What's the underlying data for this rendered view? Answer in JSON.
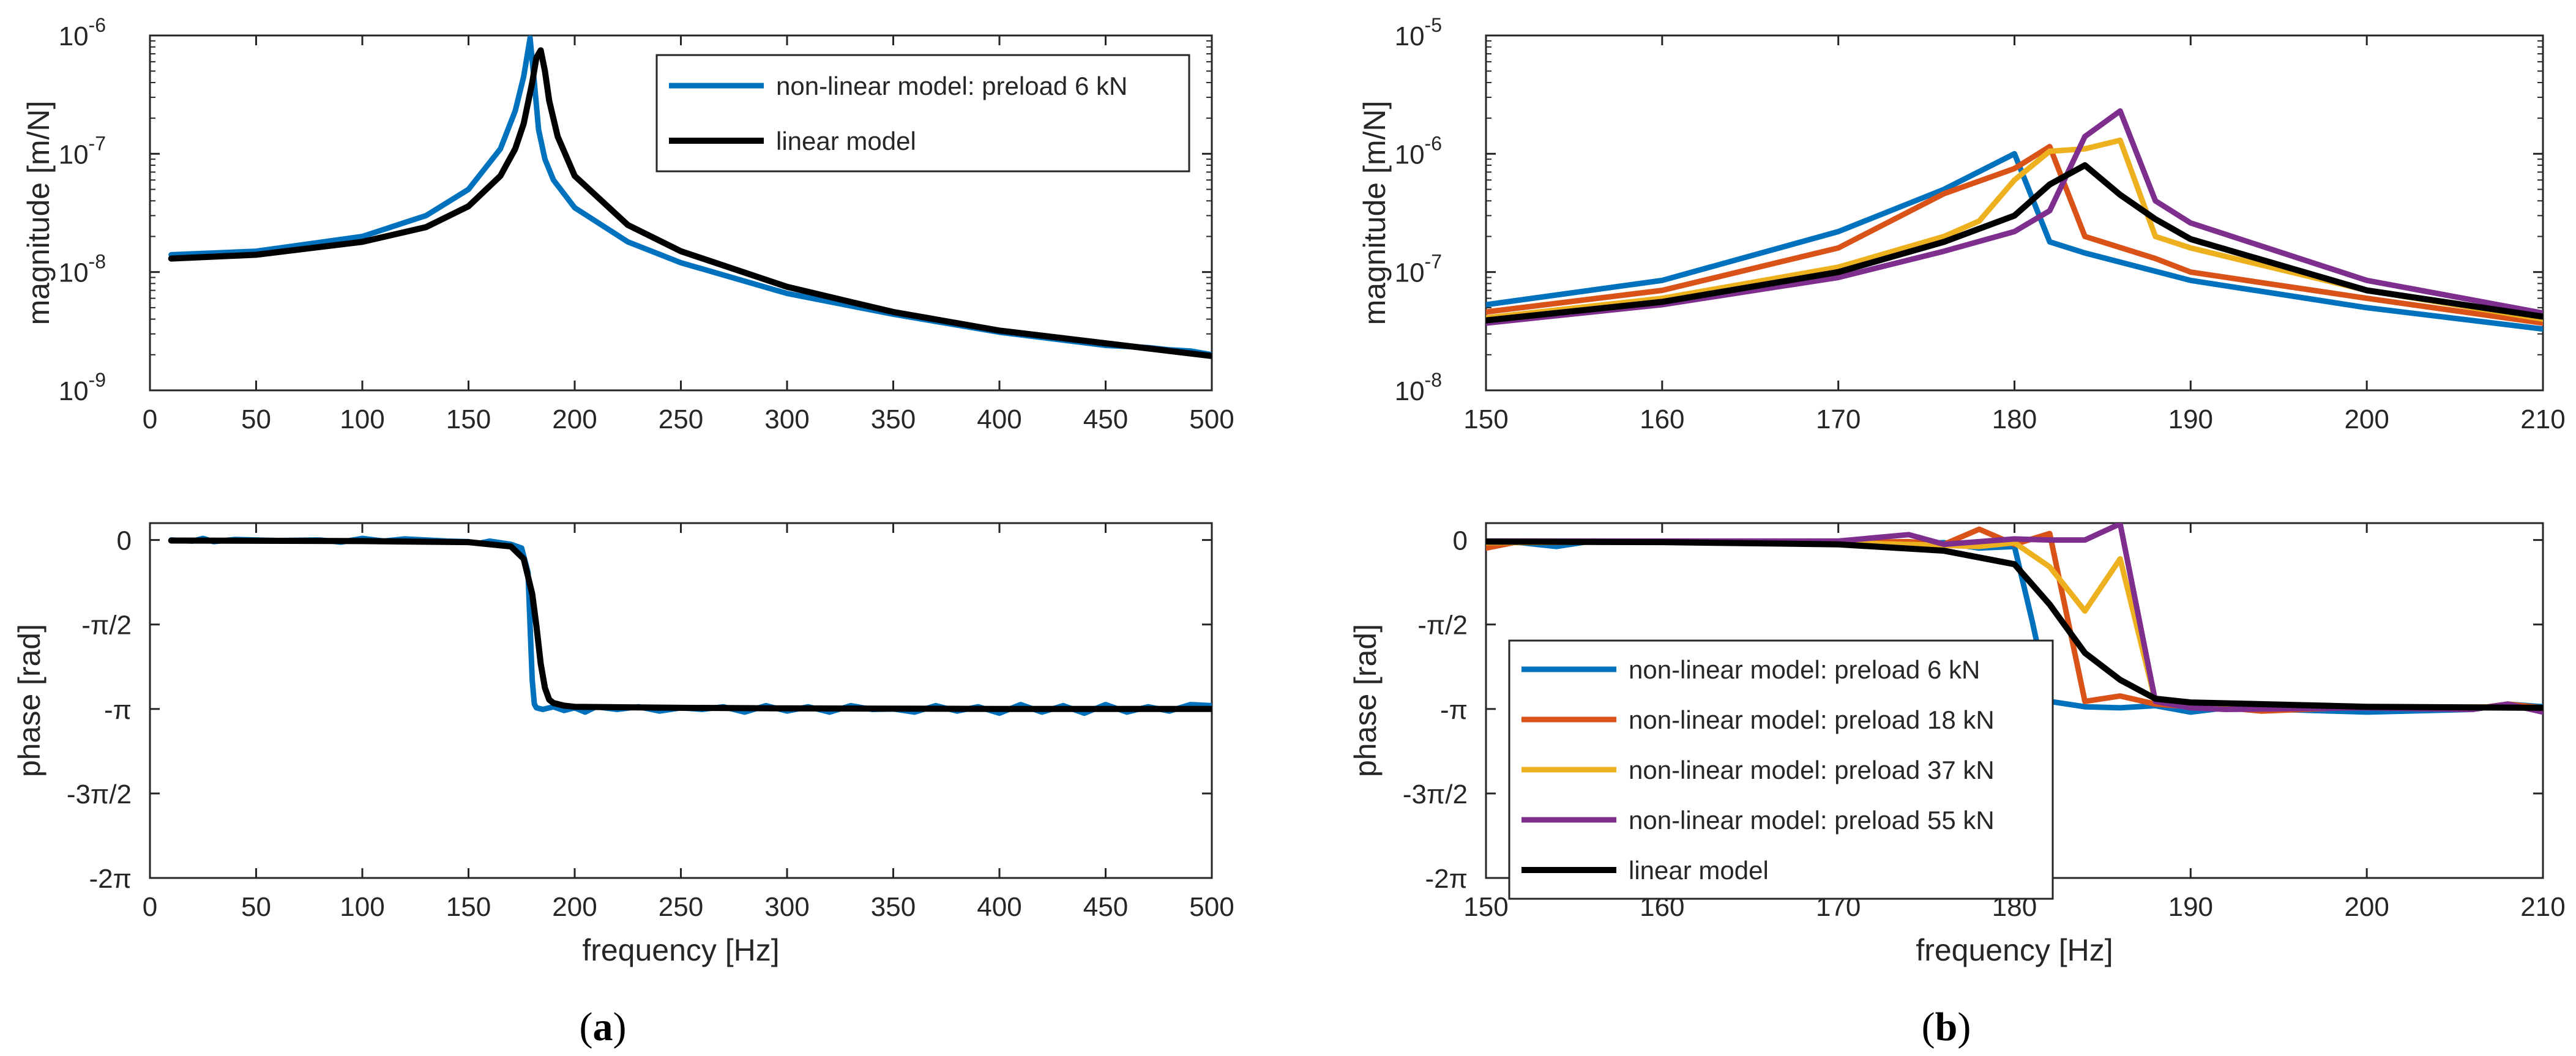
{
  "colors": {
    "nl6": "#0072BD",
    "nl18": "#D95319",
    "nl37": "#EDB120",
    "nl55": "#7E2F8E",
    "linear": "#000000"
  },
  "chart_data": [
    {
      "id": "a-magnitude",
      "type": "line",
      "ylabel": "magnitude [m/N]",
      "xlabel": "",
      "xlim": [
        0,
        500
      ],
      "ylim_log10": [
        -9,
        -6
      ],
      "yscale": "log",
      "xticks": [
        "0",
        "50",
        "100",
        "150",
        "200",
        "250",
        "300",
        "350",
        "400",
        "450",
        "500"
      ],
      "yticks": [
        {
          "base": "10",
          "exp": "-9"
        },
        {
          "base": "10",
          "exp": "-8"
        },
        {
          "base": "10",
          "exp": "-7"
        },
        {
          "base": "10",
          "exp": "-6"
        }
      ],
      "legend_position": "top-right",
      "legend": [
        "non-linear model: preload 6 kN",
        "linear model"
      ],
      "series": [
        {
          "name": "non-linear model: preload 6 kN",
          "color_key": "nl6",
          "x": [
            10,
            50,
            100,
            130,
            150,
            165,
            172,
            176,
            179,
            181,
            183,
            186,
            190,
            200,
            225,
            250,
            300,
            350,
            400,
            450,
            470,
            480,
            490,
            500
          ],
          "y": [
            1.4e-08,
            1.5e-08,
            2e-08,
            3e-08,
            5e-08,
            1.1e-07,
            2.3e-07,
            4.5e-07,
            9.5e-07,
            4e-07,
            1.6e-07,
            9e-08,
            6e-08,
            3.5e-08,
            1.8e-08,
            1.2e-08,
            6.6e-09,
            4.4e-09,
            3.1e-09,
            2.4e-09,
            2.3e-09,
            2.2e-09,
            2.15e-09,
            2e-09
          ]
        },
        {
          "name": "linear model",
          "color_key": "linear",
          "x": [
            10,
            50,
            100,
            130,
            150,
            165,
            172,
            176,
            180,
            182,
            184,
            186,
            188,
            192,
            200,
            225,
            250,
            300,
            350,
            400,
            450,
            500
          ],
          "y": [
            1.3e-08,
            1.4e-08,
            1.8e-08,
            2.4e-08,
            3.6e-08,
            6.5e-08,
            1.1e-07,
            1.8e-07,
            4e-07,
            6.5e-07,
            7.5e-07,
            5e-07,
            2.8e-07,
            1.4e-07,
            6.5e-08,
            2.5e-08,
            1.5e-08,
            7.5e-09,
            4.6e-09,
            3.2e-09,
            2.5e-09,
            1.95e-09
          ]
        }
      ]
    },
    {
      "id": "a-phase",
      "type": "line",
      "ylabel": "phase [rad]",
      "xlabel": "frequency [Hz]",
      "xlim": [
        0,
        500
      ],
      "ylim_pi": [
        -2,
        0.1
      ],
      "xticks": [
        "0",
        "50",
        "100",
        "150",
        "200",
        "250",
        "300",
        "350",
        "400",
        "450",
        "500"
      ],
      "yticks": [
        "-2π",
        "-3π/2",
        "-π",
        "-π/2",
        "0"
      ],
      "series": [
        {
          "name": "non-linear model: preload 6 kN",
          "color_key": "nl6",
          "x": [
            10,
            20,
            25,
            30,
            40,
            50,
            60,
            80,
            90,
            100,
            110,
            120,
            130,
            140,
            150,
            155,
            160,
            170,
            175,
            178,
            180,
            181,
            182,
            185,
            190,
            195,
            200,
            205,
            210,
            220,
            230,
            240,
            250,
            260,
            270,
            280,
            290,
            300,
            310,
            320,
            330,
            340,
            350,
            360,
            370,
            380,
            390,
            400,
            410,
            420,
            430,
            440,
            450,
            460,
            470,
            480,
            490,
            500
          ],
          "y": [
            0.0,
            -0.02,
            0.03,
            -0.03,
            0.01,
            0.0,
            -0.01,
            0.0,
            -0.04,
            0.03,
            -0.02,
            0.02,
            0.0,
            -0.02,
            -0.03,
            -0.06,
            -0.02,
            -0.08,
            -0.15,
            -0.6,
            -2.6,
            -3.05,
            -3.12,
            -3.15,
            -3.1,
            -3.17,
            -3.12,
            -3.2,
            -3.1,
            -3.15,
            -3.1,
            -3.18,
            -3.12,
            -3.15,
            -3.1,
            -3.2,
            -3.08,
            -3.18,
            -3.1,
            -3.2,
            -3.08,
            -3.15,
            -3.14,
            -3.2,
            -3.08,
            -3.18,
            -3.1,
            -3.22,
            -3.06,
            -3.2,
            -3.08,
            -3.22,
            -3.06,
            -3.2,
            -3.1,
            -3.18,
            -3.06,
            -3.08
          ]
        },
        {
          "name": "linear model",
          "color_key": "linear",
          "x": [
            10,
            100,
            150,
            170,
            176,
            180,
            182,
            184,
            186,
            188,
            190,
            195,
            200,
            250,
            300,
            400,
            500
          ],
          "y": [
            -0.01,
            -0.02,
            -0.04,
            -0.12,
            -0.35,
            -1.0,
            -1.6,
            -2.3,
            -2.75,
            -2.97,
            -3.03,
            -3.08,
            -3.1,
            -3.12,
            -3.13,
            -3.14,
            -3.14
          ]
        }
      ]
    },
    {
      "id": "b-magnitude",
      "type": "line",
      "ylabel": "magnitude [m/N]",
      "xlabel": "",
      "xlim": [
        150,
        210
      ],
      "ylim_log10": [
        -8,
        -5
      ],
      "yscale": "log",
      "xticks": [
        "150",
        "160",
        "170",
        "180",
        "190",
        "200",
        "210"
      ],
      "yticks": [
        {
          "base": "10",
          "exp": "-8"
        },
        {
          "base": "10",
          "exp": "-7"
        },
        {
          "base": "10",
          "exp": "-6"
        },
        {
          "base": "10",
          "exp": "-5"
        }
      ],
      "series": [
        {
          "name": "non-linear model: preload 6 kN",
          "color_key": "nl6",
          "x": [
            150,
            160,
            170,
            176,
            180,
            182,
            184,
            190,
            200,
            210
          ],
          "y": [
            5.3e-08,
            8.5e-08,
            2.2e-07,
            5e-07,
            1e-06,
            1.8e-07,
            1.45e-07,
            8.5e-08,
            5e-08,
            3.3e-08
          ]
        },
        {
          "name": "non-linear model: preload 18 kN",
          "color_key": "nl18",
          "x": [
            150,
            160,
            170,
            176,
            180,
            182,
            184,
            188,
            190,
            200,
            210
          ],
          "y": [
            4.6e-08,
            7e-08,
            1.6e-07,
            4.6e-07,
            7.5e-07,
            1.15e-06,
            2e-07,
            1.3e-07,
            1e-07,
            6e-08,
            3.7e-08
          ]
        },
        {
          "name": "non-linear model: preload 37 kN",
          "color_key": "nl37",
          "x": [
            150,
            160,
            170,
            176,
            178,
            180,
            182,
            184,
            186,
            188,
            190,
            200,
            210
          ],
          "y": [
            4.1e-08,
            6e-08,
            1.1e-07,
            2e-07,
            2.7e-07,
            6e-07,
            1.05e-06,
            1.1e-06,
            1.3e-06,
            2e-07,
            1.6e-07,
            7e-08,
            4e-08
          ]
        },
        {
          "name": "non-linear model: preload 55 kN",
          "color_key": "nl55",
          "x": [
            150,
            160,
            170,
            176,
            180,
            182,
            184,
            186,
            188,
            190,
            200,
            210
          ],
          "y": [
            3.7e-08,
            5.3e-08,
            9e-08,
            1.5e-07,
            2.2e-07,
            3.3e-07,
            1.4e-06,
            2.3e-06,
            4e-07,
            2.6e-07,
            8.5e-08,
            4.5e-08
          ]
        },
        {
          "name": "linear model",
          "color_key": "linear",
          "x": [
            150,
            160,
            170,
            176,
            180,
            182,
            184,
            186,
            188,
            190,
            200,
            210
          ],
          "y": [
            3.9e-08,
            5.6e-08,
            1e-07,
            1.8e-07,
            3e-07,
            5.5e-07,
            8e-07,
            4.5e-07,
            2.8e-07,
            1.9e-07,
            7e-08,
            4.2e-08
          ]
        }
      ]
    },
    {
      "id": "b-phase",
      "type": "line",
      "ylabel": "phase [rad]",
      "xlabel": "frequency [Hz]",
      "xlim": [
        150,
        210
      ],
      "ylim_pi": [
        -2,
        0.1
      ],
      "xticks": [
        "150",
        "160",
        "170",
        "180",
        "190",
        "200",
        "210"
      ],
      "yticks": [
        "-2π",
        "-3π/2",
        "-π",
        "-π/2",
        "0"
      ],
      "legend_position": "bottom-left",
      "legend": [
        "non-linear model: preload 6 kN",
        "non-linear model: preload 18 kN",
        "non-linear model: preload 37 kN",
        "non-linear model: preload 55 kN",
        "linear model"
      ],
      "series": [
        {
          "name": "non-linear model: preload 6 kN",
          "color_key": "nl6",
          "x": [
            150,
            152,
            154,
            156,
            160,
            170,
            172,
            176,
            178,
            180,
            181,
            182,
            184,
            186,
            188,
            190,
            192,
            200,
            206,
            208,
            210
          ],
          "y": [
            -0.02,
            -0.05,
            -0.12,
            -0.02,
            -0.03,
            -0.04,
            -0.1,
            -0.05,
            -0.15,
            -0.12,
            -1.5,
            -3.0,
            -3.1,
            -3.12,
            -3.08,
            -3.2,
            -3.12,
            -3.2,
            -3.15,
            -3.05,
            -3.1
          ]
        },
        {
          "name": "non-linear model: preload 18 kN",
          "color_key": "nl18",
          "x": [
            150,
            152,
            160,
            170,
            174,
            176,
            178,
            180,
            182,
            184,
            186,
            188,
            190,
            192,
            194,
            200,
            206,
            208,
            210
          ],
          "y": [
            -0.15,
            -0.02,
            -0.03,
            -0.05,
            -0.03,
            -0.08,
            0.2,
            -0.08,
            0.12,
            -3.0,
            -2.9,
            -3.05,
            -3.1,
            -3.12,
            -3.18,
            -3.1,
            -3.14,
            -3.05,
            -3.12
          ]
        },
        {
          "name": "non-linear model: preload 37 kN",
          "color_key": "nl37",
          "x": [
            150,
            160,
            170,
            176,
            178,
            180,
            182,
            184,
            186,
            188,
            190,
            192,
            200,
            208,
            210
          ],
          "y": [
            -0.05,
            -0.03,
            -0.05,
            -0.1,
            -0.12,
            -0.05,
            -0.5,
            -1.32,
            -0.35,
            -3.0,
            -3.08,
            -3.12,
            -3.12,
            -3.1,
            -3.15
          ]
        },
        {
          "name": "non-linear model: preload 55 kN",
          "color_key": "nl55",
          "x": [
            150,
            160,
            170,
            174,
            176,
            180,
            182,
            184,
            186,
            188,
            190,
            192,
            200,
            206,
            208,
            210
          ],
          "y": [
            -0.02,
            -0.02,
            -0.02,
            0.1,
            -0.08,
            0.02,
            0.0,
            0.0,
            0.3,
            -3.0,
            -3.12,
            -3.15,
            -3.12,
            -3.15,
            -3.05,
            -3.2
          ]
        },
        {
          "name": "linear model",
          "color_key": "linear",
          "x": [
            150,
            160,
            170,
            176,
            180,
            182,
            184,
            186,
            188,
            190,
            200,
            210
          ],
          "y": [
            -0.03,
            -0.04,
            -0.08,
            -0.2,
            -0.45,
            -1.2,
            -2.1,
            -2.6,
            -2.95,
            -3.02,
            -3.1,
            -3.12
          ]
        }
      ]
    }
  ],
  "captions": {
    "a": {
      "open": "(",
      "letter": "a",
      "close": ")"
    },
    "b": {
      "open": "(",
      "letter": "b",
      "close": ")"
    }
  }
}
